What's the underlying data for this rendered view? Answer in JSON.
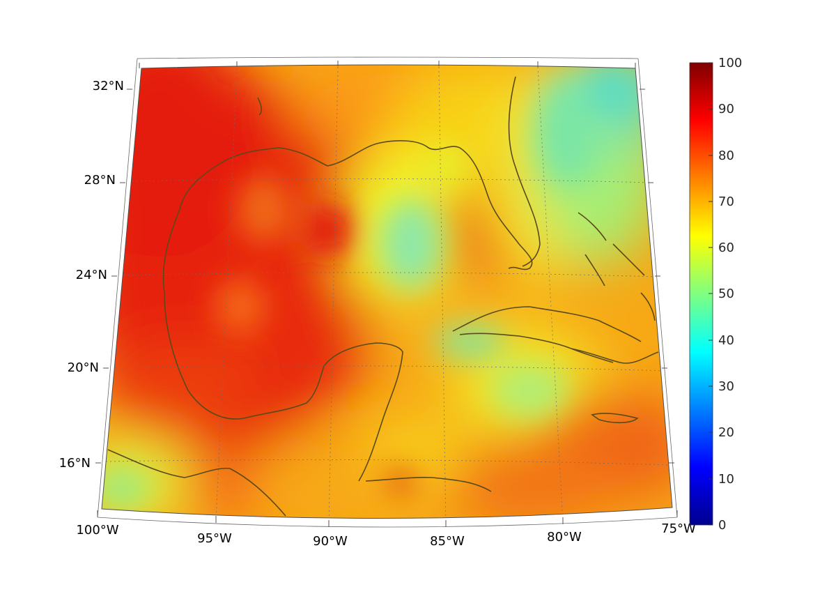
{
  "map": {
    "projection": "conic",
    "field_colors": {
      "gulf_core": "#e8200f",
      "west_edge": "#e62010",
      "florida_atlantic": "#78e8a0",
      "central_gulf_low": "#8ee8a8",
      "cuba_south_low": "#7ee6a4",
      "caribbean": "#f59a12",
      "coast_line": "#5a4a1a"
    },
    "longitude_labels": [
      "100°W",
      "95°W",
      "90°W",
      "85°W",
      "80°W",
      "75°W"
    ],
    "latitude_labels": [
      "32°N",
      "28°N",
      "24°N",
      "20°N",
      "16°N"
    ]
  },
  "colorbar": {
    "colormap": "jet",
    "range": [
      0,
      100
    ],
    "tick_labels": [
      "100",
      "90",
      "80",
      "70",
      "60",
      "50",
      "40",
      "30",
      "20",
      "10",
      "0"
    ]
  }
}
